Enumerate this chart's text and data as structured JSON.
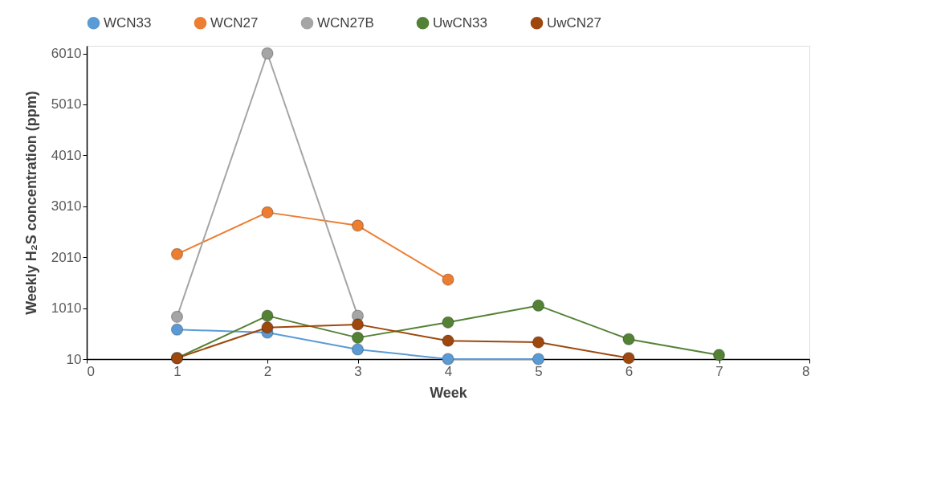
{
  "chart_data": {
    "type": "line",
    "xlabel": "Week",
    "ylabel": "Weekly H₂S concentration (ppm)",
    "xlim": [
      0,
      8
    ],
    "xticks": [
      0,
      1,
      2,
      3,
      4,
      5,
      6,
      7,
      8
    ],
    "ylim": [
      10,
      6160
    ],
    "yticks": [
      10,
      1010,
      2010,
      3010,
      4010,
      5010,
      6010
    ],
    "grid": false,
    "legend": "top",
    "marker": "circle",
    "line_style": "solid",
    "series": [
      {
        "name": "WCN33",
        "color": "#5b9bd5",
        "x": [
          1,
          2,
          3,
          4,
          5
        ],
        "values": [
          590,
          530,
          200,
          10,
          10
        ]
      },
      {
        "name": "WCN27",
        "color": "#ed7d31",
        "x": [
          1,
          2,
          3,
          4
        ],
        "values": [
          2070,
          2890,
          2630,
          1570
        ]
      },
      {
        "name": "WCN27B",
        "color": "#a5a5a5",
        "x": [
          1,
          2,
          3
        ],
        "values": [
          840,
          6010,
          860
        ]
      },
      {
        "name": "UwCN33",
        "color": "#548235",
        "x": [
          1,
          2,
          3,
          4,
          5,
          6,
          7
        ],
        "values": [
          30,
          860,
          430,
          730,
          1060,
          400,
          90
        ]
      },
      {
        "name": "UwCN27",
        "color": "#9e480e",
        "x": [
          1,
          2,
          3,
          4,
          5,
          6
        ],
        "values": [
          30,
          630,
          690,
          370,
          340,
          30
        ]
      }
    ]
  }
}
